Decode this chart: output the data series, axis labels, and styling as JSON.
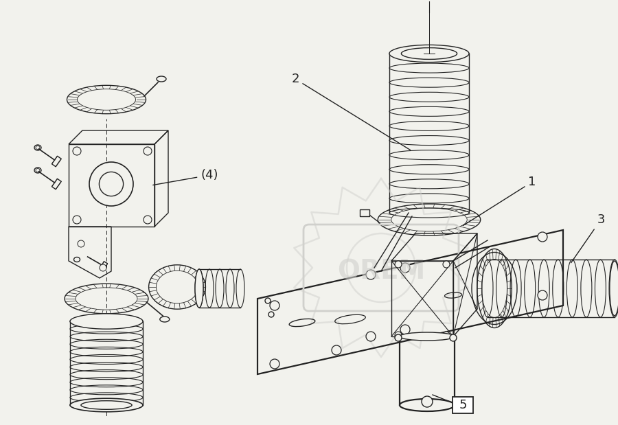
{
  "bg_color": "#f2f2ed",
  "line_color": "#222222",
  "wm_color": "#d0d0cc",
  "wm_text": "OREM",
  "figsize": [
    9.0,
    6.19
  ],
  "dpi": 100,
  "lw": 1.0,
  "lw_thick": 1.6
}
